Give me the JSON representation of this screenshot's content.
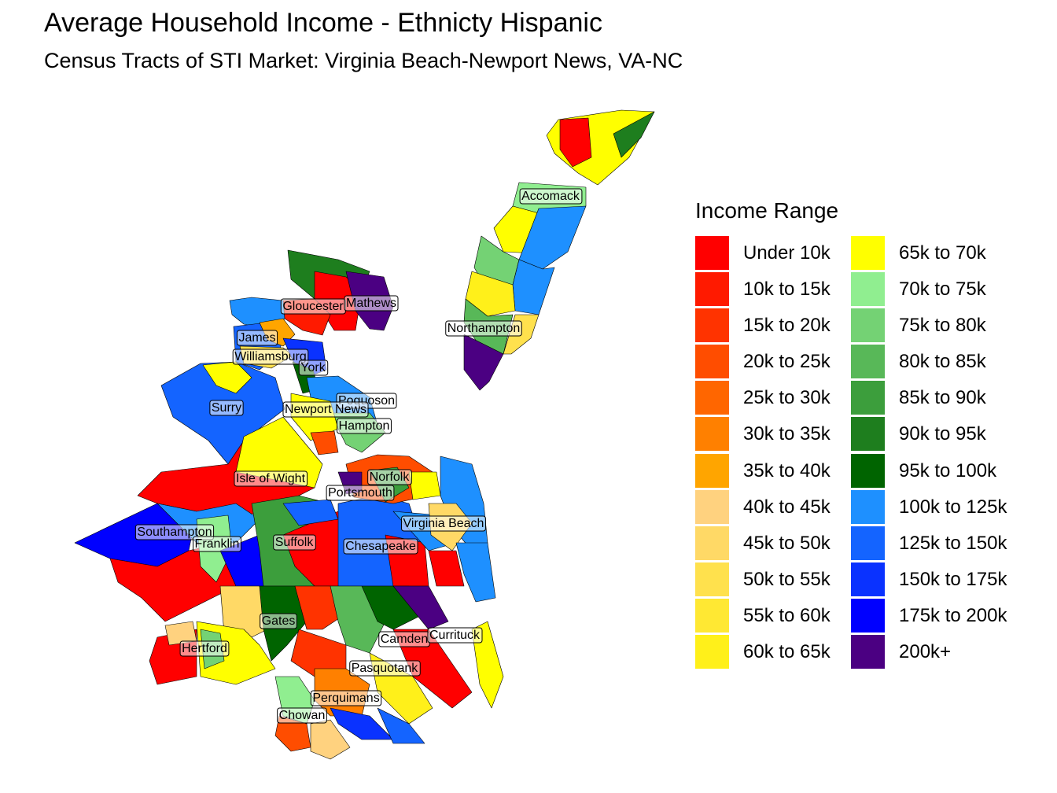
{
  "title": "Average Household Income - Ethnicty Hispanic",
  "subtitle": "Census Tracts of STI Market: Virginia Beach-Newport News, VA-NC",
  "legend": {
    "title": "Income Range",
    "items": [
      {
        "label": "Under 10k",
        "color": "#FF0000"
      },
      {
        "label": "10k to 15k",
        "color": "#FF1A00"
      },
      {
        "label": "15k to 20k",
        "color": "#FF3300"
      },
      {
        "label": "20k to 25k",
        "color": "#FF4D00"
      },
      {
        "label": "25k to 30k",
        "color": "#FF6600"
      },
      {
        "label": "30k to 35k",
        "color": "#FF8000"
      },
      {
        "label": "35k to 40k",
        "color": "#FFA500"
      },
      {
        "label": "40k to 45k",
        "color": "#FFD27F"
      },
      {
        "label": "45k to 50k",
        "color": "#FFD966"
      },
      {
        "label": "50k to 55k",
        "color": "#FFE14D"
      },
      {
        "label": "55k to 60k",
        "color": "#FFE833"
      },
      {
        "label": "60k to 65k",
        "color": "#FFF01A"
      },
      {
        "label": "65k to 70k",
        "color": "#FFFF00"
      },
      {
        "label": "70k to 75k",
        "color": "#90EE90"
      },
      {
        "label": "75k to 80k",
        "color": "#74D274"
      },
      {
        "label": "80k to 85k",
        "color": "#58B858"
      },
      {
        "label": "85k to 90k",
        "color": "#3C9E3C"
      },
      {
        "label": "90k to 95k",
        "color": "#1E7E1E"
      },
      {
        "label": "95k to 100k",
        "color": "#006400"
      },
      {
        "label": "100k to 125k",
        "color": "#1E90FF"
      },
      {
        "label": "125k to 150k",
        "color": "#1464FF"
      },
      {
        "label": "150k to 175k",
        "color": "#0A32FF"
      },
      {
        "label": "175k to 200k",
        "color": "#0000FF"
      },
      {
        "label": "200k+",
        "color": "#4B0082"
      }
    ]
  },
  "place_labels": [
    "Accomack",
    "Gloucester",
    "Mathews",
    "Northampton",
    "James",
    "Williamsburg",
    "York",
    "Poquoson",
    "Surry",
    "Newport News",
    "Hampton",
    "Isle of Wight",
    "Norfolk",
    "Portsmouth",
    "Virginia Beach",
    "Southampton",
    "Franklin",
    "Suffolk",
    "Chesapeake",
    "Gates",
    "Camden",
    "Currituck",
    "Hertford",
    "Pasquotank",
    "Perquimans",
    "Chowan"
  ]
}
